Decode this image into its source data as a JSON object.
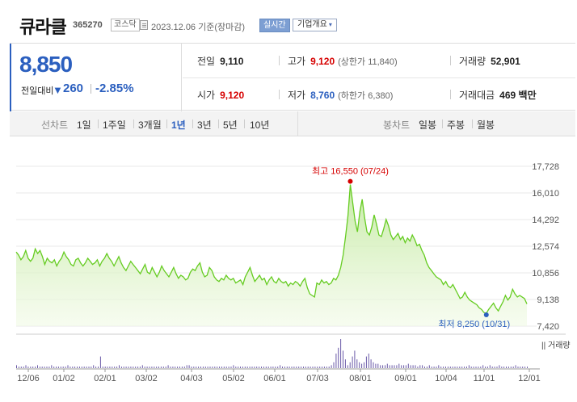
{
  "header": {
    "name": "큐라클",
    "code": "365270",
    "market": "코스닥",
    "date_text": "2023.12.06 기준(장마감)",
    "realtime_label": "실시간",
    "company_info_label": "기업개요"
  },
  "quote": {
    "price": "8,850",
    "change_label": "전일대비",
    "change_arrow": "▼",
    "change": "260",
    "change_pct": "-2.85%",
    "prev_close_label": "전일",
    "prev_close": "9,110",
    "high_label": "고가",
    "high": "9,120",
    "upper_limit": "(상한가 11,840)",
    "volume_label": "거래량",
    "volume": "52,901",
    "open_label": "시가",
    "open": "9,120",
    "low_label": "저가",
    "low": "8,760",
    "lower_limit": "(하한가 6,380)",
    "value_label": "거래대금",
    "value": "469 백만"
  },
  "period_bar": {
    "line_label": "선차트",
    "line_periods": [
      "1일",
      "1주일",
      "3개월",
      "1년",
      "3년",
      "5년",
      "10년"
    ],
    "active_period": "1년",
    "candle_label": "봉차트",
    "candle_periods": [
      "일봉",
      "주봉",
      "월봉"
    ]
  },
  "colors": {
    "accent_blue": "#2b5fbf",
    "up_red": "#d60000",
    "line_green": "#66cc22",
    "fill_green": "#d6f2b8"
  },
  "chart_data": {
    "type": "area",
    "y_ticks": [
      "17,728",
      "16,010",
      "14,292",
      "12,574",
      "10,856",
      "9,138",
      "7,420"
    ],
    "ylim": [
      7420,
      17728
    ],
    "x_ticks": [
      "12/06",
      "01/02",
      "02/01",
      "03/02",
      "04/03",
      "05/02",
      "06/01",
      "07/03",
      "08/01",
      "09/01",
      "10/04",
      "11/01",
      "12/01"
    ],
    "max_label": "최고 16,550 (07/24)",
    "min_label": "최저 8,250 (10/31)",
    "volume_legend": "거래량",
    "price_series": [
      12200,
      12000,
      11700,
      11900,
      12300,
      11800,
      11600,
      11800,
      12400,
      12100,
      12300,
      11900,
      11400,
      11800,
      11600,
      11500,
      11700,
      11300,
      11600,
      11800,
      12200,
      11900,
      11700,
      11400,
      11300,
      11700,
      11800,
      11500,
      11300,
      11500,
      11800,
      11600,
      11400,
      11500,
      11700,
      11300,
      11600,
      11800,
      12100,
      11800,
      11600,
      11300,
      11600,
      11900,
      11500,
      11200,
      11000,
      11300,
      11600,
      11400,
      11200,
      11000,
      10800,
      11100,
      11400,
      10900,
      10800,
      11200,
      10900,
      10600,
      10900,
      11300,
      11000,
      10800,
      10600,
      10900,
      11200,
      10800,
      10500,
      10700,
      10600,
      10400,
      10500,
      10900,
      11100,
      11000,
      11300,
      11500,
      10900,
      10600,
      10700,
      11200,
      11000,
      10600,
      10400,
      10300,
      10500,
      10400,
      10700,
      10500,
      10400,
      10500,
      10200,
      10300,
      10400,
      10100,
      10600,
      10900,
      11200,
      10700,
      10300,
      10500,
      10700,
      10400,
      10500,
      10100,
      10400,
      10600,
      10300,
      10200,
      10500,
      10300,
      10200,
      10300,
      10000,
      10200,
      10100,
      10300,
      10200,
      10000,
      10300,
      10500,
      9900,
      9500,
      9400,
      9300,
      10200,
      10100,
      10400,
      10200,
      10300,
      10100,
      10200,
      10500,
      10400,
      10700,
      11200,
      12000,
      13200,
      14500,
      16550,
      15400,
      14200,
      13500,
      14800,
      15600,
      14400,
      13500,
      13300,
      13800,
      14600,
      14000,
      13300,
      13200,
      13700,
      14300,
      13900,
      13300,
      13000,
      13200,
      13400,
      13000,
      13200,
      12800,
      13100,
      12900,
      13300,
      13000,
      12600,
      12700,
      12300,
      12000,
      11500,
      11200,
      11000,
      10800,
      10600,
      10500,
      10400,
      10100,
      10300,
      10000,
      9900,
      10100,
      9800,
      9500,
      9200,
      9300,
      9600,
      9300,
      9100,
      9000,
      8900,
      8800,
      8600,
      8500,
      8300,
      8250,
      8500,
      8700,
      8900,
      8600,
      8400,
      8700,
      9000,
      9400,
      9100,
      9300,
      9800,
      9500,
      9300,
      9400,
      9300,
      9200,
      8850
    ],
    "volume_series": [
      2,
      1,
      1,
      1,
      2,
      1,
      1,
      1,
      1,
      2,
      1,
      1,
      1,
      1,
      1,
      2,
      1,
      1,
      1,
      1,
      1,
      1,
      2,
      1,
      1,
      1,
      1,
      1,
      1,
      1,
      1,
      1,
      1,
      2,
      1,
      1,
      8,
      1,
      1,
      1,
      1,
      1,
      1,
      1,
      2,
      1,
      1,
      1,
      1,
      1,
      1,
      1,
      1,
      1,
      2,
      1,
      1,
      1,
      1,
      1,
      1,
      1,
      1,
      1,
      1,
      2,
      1,
      1,
      1,
      1,
      1,
      1,
      1,
      2,
      2,
      1,
      1,
      1,
      1,
      1,
      1,
      1,
      1,
      1,
      1,
      1,
      1,
      1,
      1,
      1,
      1,
      1,
      1,
      2,
      1,
      1,
      1,
      1,
      1,
      1,
      1,
      1,
      1,
      1,
      1,
      1,
      1,
      1,
      1,
      1,
      1,
      1,
      1,
      2,
      1,
      1,
      1,
      1,
      1,
      1,
      1,
      1,
      1,
      1,
      1,
      1,
      1,
      1,
      1,
      1,
      1,
      1,
      1,
      1,
      1,
      2,
      4,
      10,
      14,
      20,
      12,
      6,
      2,
      4,
      8,
      12,
      6,
      4,
      3,
      4,
      8,
      10,
      6,
      4,
      3,
      3,
      2,
      2,
      2,
      3,
      2,
      2,
      2,
      2,
      3,
      2,
      2,
      2,
      3,
      2,
      2,
      2,
      1,
      2,
      2,
      1,
      1,
      2,
      1,
      1,
      1,
      2,
      1,
      1,
      1,
      1,
      1,
      1,
      1,
      1,
      1,
      1,
      1,
      1,
      2,
      1,
      1,
      1,
      1,
      1,
      2,
      1,
      1,
      2,
      1,
      1,
      1,
      2,
      1,
      1,
      1,
      1,
      1,
      1,
      2,
      1,
      1,
      1,
      1,
      1
    ]
  }
}
